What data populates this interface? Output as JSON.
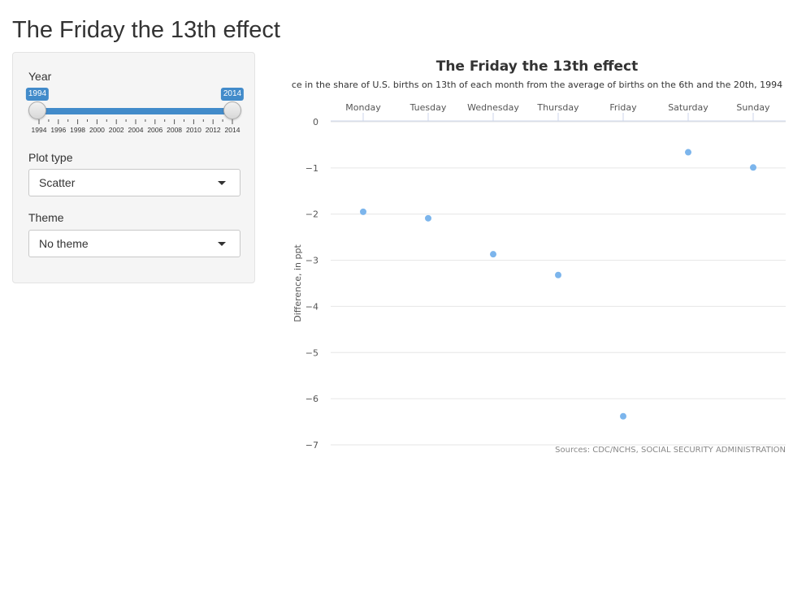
{
  "app": {
    "title": "The Friday the 13th effect"
  },
  "sidebar": {
    "year_label": "Year",
    "year_slider": {
      "min": 1994,
      "max": 2014,
      "from": 1994,
      "to": 2014,
      "from_label": "1994",
      "to_label": "2014",
      "tick_labels": [
        "1994",
        "1996",
        "1998",
        "2000",
        "2002",
        "2004",
        "2006",
        "2008",
        "2010",
        "2012",
        "2014"
      ]
    },
    "plot_type_label": "Plot type",
    "plot_type_value": "Scatter",
    "theme_label": "Theme",
    "theme_value": "No theme"
  },
  "chart_data": {
    "type": "scatter",
    "title": "The Friday the 13th effect",
    "subtitle": "ce in the share of U.S. births on 13th of each month from the average of births on the 6th and the 20th, 1994",
    "xlabel": "",
    "ylabel": "Difference, in ppt",
    "categories": [
      "Monday",
      "Tuesday",
      "Wednesday",
      "Thursday",
      "Friday",
      "Saturday",
      "Sunday"
    ],
    "values": [
      -1.95,
      -2.09,
      -2.87,
      -3.32,
      -6.38,
      -0.66,
      -0.99
    ],
    "ylim": [
      -7,
      0
    ],
    "y_ticks": [
      "0",
      "−1",
      "−2",
      "−3",
      "−4",
      "−5",
      "−6",
      "−7"
    ],
    "x_axis_position": "top",
    "grid": true,
    "point_color": "#7cb5ec",
    "credits": "Sources: CDC/NCHS, SOCIAL SECURITY ADMINISTRATION"
  }
}
